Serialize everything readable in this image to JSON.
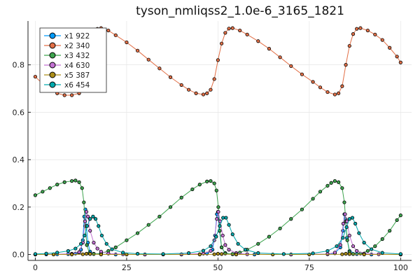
{
  "chart_data": {
    "type": "scatter",
    "title": "tyson_nmliqss2_1.0e-6_3165_1821",
    "xlabel": "",
    "ylabel": "",
    "xlim": [
      -2,
      103
    ],
    "ylim": [
      -0.025,
      0.985
    ],
    "x_ticks": [
      0,
      25,
      50,
      75,
      100
    ],
    "x_tick_labels": [
      "0",
      "25",
      "50",
      "75",
      "100"
    ],
    "y_ticks": [
      0.0,
      0.2,
      0.4,
      0.6,
      0.8
    ],
    "y_tick_labels": [
      "0.0",
      "0.2",
      "0.4",
      "0.6",
      "0.8"
    ],
    "grid": true,
    "legend_position": "top-left",
    "series": [
      {
        "name": "x1 922",
        "color": "#009AFA",
        "points": [
          [
            0,
            0.0
          ],
          [
            3,
            0.0005
          ],
          [
            6,
            0.001
          ],
          [
            9,
            0.002
          ],
          [
            11,
            0.004
          ],
          [
            12,
            0.008
          ],
          [
            12.5,
            0.02
          ],
          [
            13,
            0.06
          ],
          [
            13.4,
            0.16
          ],
          [
            13.7,
            0.19
          ],
          [
            14.0,
            0.12
          ],
          [
            14.4,
            0.05
          ],
          [
            15,
            0.012
          ],
          [
            16,
            0.003
          ],
          [
            18,
            0.001
          ],
          [
            22,
            0.0
          ],
          [
            30,
            0.0
          ],
          [
            40,
            0.0
          ],
          [
            45,
            0.001
          ],
          [
            47,
            0.004
          ],
          [
            48.5,
            0.02
          ],
          [
            49.2,
            0.08
          ],
          [
            49.7,
            0.17
          ],
          [
            50.0,
            0.18
          ],
          [
            50.4,
            0.1
          ],
          [
            51,
            0.03
          ],
          [
            52,
            0.006
          ],
          [
            54,
            0.001
          ],
          [
            60,
            0.0
          ],
          [
            70,
            0.0
          ],
          [
            80,
            0.001
          ],
          [
            82,
            0.005
          ],
          [
            83.5,
            0.03
          ],
          [
            84.2,
            0.1
          ],
          [
            84.6,
            0.17
          ],
          [
            84.9,
            0.15
          ],
          [
            85.3,
            0.07
          ],
          [
            86,
            0.015
          ],
          [
            88,
            0.002
          ],
          [
            92,
            0.0
          ],
          [
            100,
            0.0
          ]
        ]
      },
      {
        "name": "x2 340",
        "color": "#E26F46",
        "points": [
          [
            0,
            0.75
          ],
          [
            2,
            0.72
          ],
          [
            4,
            0.695
          ],
          [
            6,
            0.68
          ],
          [
            8,
            0.672
          ],
          [
            10,
            0.672
          ],
          [
            12,
            0.68
          ],
          [
            13,
            0.72
          ],
          [
            14,
            0.8
          ],
          [
            15,
            0.88
          ],
          [
            16,
            0.93
          ],
          [
            17,
            0.952
          ],
          [
            18,
            0.955
          ],
          [
            20,
            0.945
          ],
          [
            22,
            0.925
          ],
          [
            25,
            0.895
          ],
          [
            28,
            0.86
          ],
          [
            31,
            0.822
          ],
          [
            34,
            0.785
          ],
          [
            37,
            0.748
          ],
          [
            40,
            0.715
          ],
          [
            42,
            0.695
          ],
          [
            44,
            0.68
          ],
          [
            46,
            0.675
          ],
          [
            47,
            0.68
          ],
          [
            48,
            0.695
          ],
          [
            49,
            0.74
          ],
          [
            50,
            0.82
          ],
          [
            51,
            0.89
          ],
          [
            52,
            0.935
          ],
          [
            53,
            0.953
          ],
          [
            54,
            0.955
          ],
          [
            56,
            0.945
          ],
          [
            58,
            0.928
          ],
          [
            61,
            0.9
          ],
          [
            64,
            0.868
          ],
          [
            67,
            0.832
          ],
          [
            70,
            0.795
          ],
          [
            73,
            0.76
          ],
          [
            76,
            0.728
          ],
          [
            78,
            0.705
          ],
          [
            80,
            0.685
          ],
          [
            82,
            0.675
          ],
          [
            83,
            0.68
          ],
          [
            84,
            0.71
          ],
          [
            85,
            0.8
          ],
          [
            86,
            0.88
          ],
          [
            87,
            0.93
          ],
          [
            88,
            0.952
          ],
          [
            89,
            0.955
          ],
          [
            91,
            0.945
          ],
          [
            93,
            0.928
          ],
          [
            95,
            0.905
          ],
          [
            97,
            0.872
          ],
          [
            99,
            0.835
          ],
          [
            100,
            0.81
          ]
        ]
      },
      {
        "name": "x3 432",
        "color": "#3DA44E",
        "points": [
          [
            0,
            0.25
          ],
          [
            2,
            0.265
          ],
          [
            4,
            0.28
          ],
          [
            6,
            0.295
          ],
          [
            8,
            0.305
          ],
          [
            10,
            0.31
          ],
          [
            11,
            0.312
          ],
          [
            12,
            0.305
          ],
          [
            12.8,
            0.28
          ],
          [
            13.3,
            0.22
          ],
          [
            13.7,
            0.12
          ],
          [
            14.1,
            0.04
          ],
          [
            14.8,
            0.005
          ],
          [
            16,
            0.002
          ],
          [
            18,
            0.005
          ],
          [
            20,
            0.015
          ],
          [
            22,
            0.03
          ],
          [
            25,
            0.06
          ],
          [
            28,
            0.09
          ],
          [
            31,
            0.125
          ],
          [
            34,
            0.16
          ],
          [
            37,
            0.2
          ],
          [
            40,
            0.24
          ],
          [
            43,
            0.275
          ],
          [
            45,
            0.295
          ],
          [
            47,
            0.308
          ],
          [
            48,
            0.31
          ],
          [
            49,
            0.3
          ],
          [
            49.6,
            0.27
          ],
          [
            50.1,
            0.2
          ],
          [
            50.5,
            0.1
          ],
          [
            51,
            0.03
          ],
          [
            52,
            0.004
          ],
          [
            54,
            0.002
          ],
          [
            56,
            0.008
          ],
          [
            58,
            0.02
          ],
          [
            61,
            0.045
          ],
          [
            64,
            0.075
          ],
          [
            67,
            0.11
          ],
          [
            70,
            0.15
          ],
          [
            73,
            0.19
          ],
          [
            76,
            0.235
          ],
          [
            78,
            0.265
          ],
          [
            80,
            0.29
          ],
          [
            81,
            0.302
          ],
          [
            82,
            0.31
          ],
          [
            83,
            0.305
          ],
          [
            84,
            0.28
          ],
          [
            84.6,
            0.22
          ],
          [
            85,
            0.14
          ],
          [
            85.4,
            0.06
          ],
          [
            86,
            0.01
          ],
          [
            87,
            0.002
          ],
          [
            89,
            0.004
          ],
          [
            91,
            0.015
          ],
          [
            93,
            0.035
          ],
          [
            95,
            0.065
          ],
          [
            97,
            0.1
          ],
          [
            99,
            0.145
          ],
          [
            100,
            0.165
          ]
        ]
      },
      {
        "name": "x4 630",
        "color": "#C271D2",
        "points": [
          [
            0,
            0.0
          ],
          [
            5,
            0.001
          ],
          [
            10,
            0.003
          ],
          [
            12,
            0.01
          ],
          [
            13,
            0.05
          ],
          [
            13.6,
            0.14
          ],
          [
            14.0,
            0.18
          ],
          [
            14.4,
            0.16
          ],
          [
            15,
            0.1
          ],
          [
            16,
            0.05
          ],
          [
            17,
            0.025
          ],
          [
            18,
            0.012
          ],
          [
            20,
            0.004
          ],
          [
            24,
            0.001
          ],
          [
            30,
            0.0
          ],
          [
            40,
            0.001
          ],
          [
            46,
            0.004
          ],
          [
            48,
            0.015
          ],
          [
            49,
            0.06
          ],
          [
            49.7,
            0.15
          ],
          [
            50.1,
            0.18
          ],
          [
            50.6,
            0.14
          ],
          [
            51.3,
            0.08
          ],
          [
            52,
            0.04
          ],
          [
            53,
            0.02
          ],
          [
            55,
            0.006
          ],
          [
            58,
            0.001
          ],
          [
            70,
            0.0
          ],
          [
            80,
            0.002
          ],
          [
            82,
            0.008
          ],
          [
            83.5,
            0.04
          ],
          [
            84.3,
            0.13
          ],
          [
            84.8,
            0.17
          ],
          [
            85.3,
            0.14
          ],
          [
            86,
            0.08
          ],
          [
            87,
            0.035
          ],
          [
            88,
            0.015
          ],
          [
            90,
            0.004
          ],
          [
            94,
            0.001
          ],
          [
            100,
            0.0
          ]
        ]
      },
      {
        "name": "x5 387",
        "color": "#AC8E18",
        "points": [
          [
            0,
            0.0
          ],
          [
            5,
            0.0
          ],
          [
            10,
            0.0
          ],
          [
            13,
            0.001
          ],
          [
            14,
            0.003
          ],
          [
            15,
            0.002
          ],
          [
            18,
            0.0
          ],
          [
            25,
            0.0
          ],
          [
            35,
            0.0
          ],
          [
            45,
            0.0
          ],
          [
            49,
            0.001
          ],
          [
            50,
            0.003
          ],
          [
            51,
            0.002
          ],
          [
            55,
            0.0
          ],
          [
            65,
            0.0
          ],
          [
            75,
            0.0
          ],
          [
            84,
            0.001
          ],
          [
            85,
            0.003
          ],
          [
            86,
            0.002
          ],
          [
            90,
            0.0
          ],
          [
            100,
            0.0
          ]
        ]
      },
      {
        "name": "x6 454",
        "color": "#00A9AD",
        "points": [
          [
            0,
            0.002
          ],
          [
            3,
            0.004
          ],
          [
            6,
            0.008
          ],
          [
            9,
            0.015
          ],
          [
            11,
            0.025
          ],
          [
            12.5,
            0.045
          ],
          [
            13.5,
            0.08
          ],
          [
            14.2,
            0.12
          ],
          [
            15,
            0.15
          ],
          [
            15.8,
            0.16
          ],
          [
            16.5,
            0.15
          ],
          [
            17.3,
            0.12
          ],
          [
            18.2,
            0.08
          ],
          [
            19.5,
            0.045
          ],
          [
            21,
            0.022
          ],
          [
            24,
            0.008
          ],
          [
            28,
            0.003
          ],
          [
            35,
            0.002
          ],
          [
            42,
            0.006
          ],
          [
            46,
            0.016
          ],
          [
            48,
            0.035
          ],
          [
            49.5,
            0.075
          ],
          [
            50.5,
            0.12
          ],
          [
            51.4,
            0.155
          ],
          [
            52.2,
            0.155
          ],
          [
            53,
            0.125
          ],
          [
            54,
            0.085
          ],
          [
            55.5,
            0.045
          ],
          [
            57.5,
            0.02
          ],
          [
            61,
            0.006
          ],
          [
            68,
            0.002
          ],
          [
            76,
            0.005
          ],
          [
            80,
            0.015
          ],
          [
            82.5,
            0.035
          ],
          [
            84.2,
            0.07
          ],
          [
            85.2,
            0.115
          ],
          [
            86,
            0.15
          ],
          [
            86.8,
            0.155
          ],
          [
            87.6,
            0.13
          ],
          [
            88.6,
            0.09
          ],
          [
            90,
            0.05
          ],
          [
            92,
            0.022
          ],
          [
            95,
            0.007
          ],
          [
            100,
            0.002
          ]
        ]
      }
    ]
  }
}
